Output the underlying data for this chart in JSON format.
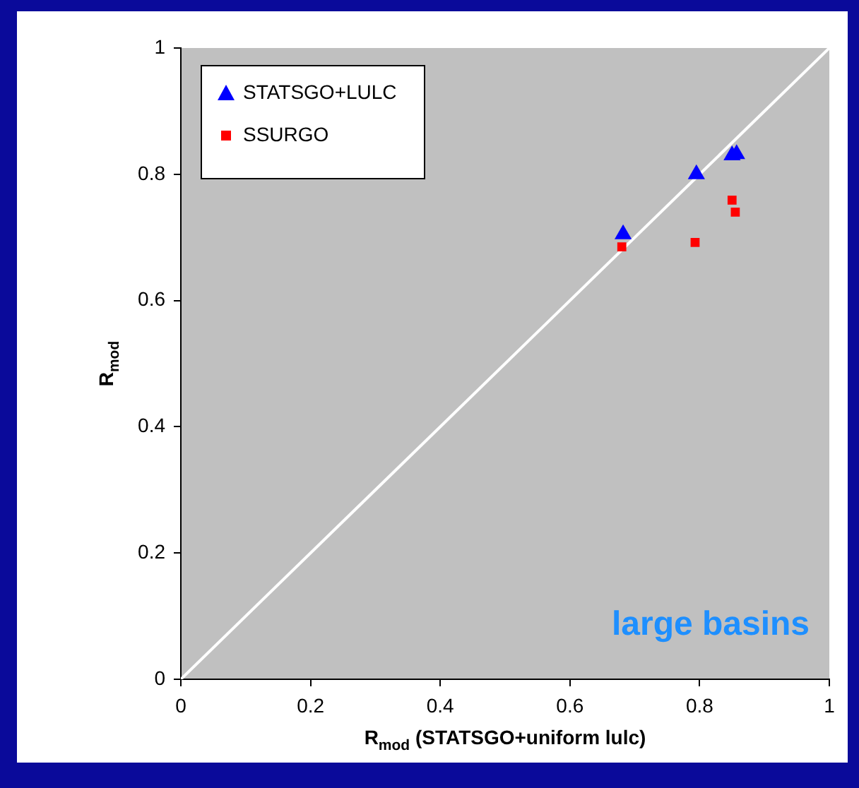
{
  "chart_data": {
    "type": "scatter",
    "xlabel": "R$_{mod}$ (STATSGO+uniform lulc)",
    "ylabel": "R$_{mod}$",
    "xlim": [
      0,
      1
    ],
    "ylim": [
      0,
      1
    ],
    "xticks": [
      0,
      0.2,
      0.4,
      0.6,
      0.8,
      1
    ],
    "yticks": [
      0,
      0.2,
      0.4,
      0.6,
      0.8,
      1
    ],
    "grid": false,
    "legend": "top left",
    "series": [
      {
        "name": "STATSGO+LULC",
        "color": "#0000ff",
        "marker": "triangle",
        "x": [
          0.682,
          0.795,
          0.85,
          0.857
        ],
        "values": [
          0.705,
          0.8,
          0.83,
          0.832
        ]
      },
      {
        "name": "SSURGO",
        "color": "#ff0000",
        "marker": "square",
        "x": [
          0.68,
          0.85,
          0.855,
          0.793
        ],
        "values": [
          0.685,
          0.759,
          0.74,
          0.692
        ]
      },
      {
        "type": "line",
        "color": "#ffffff",
        "marker": "none",
        "x": [
          0,
          1
        ],
        "values": [
          0,
          1
        ]
      }
    ],
    "annotations": [
      "large basins"
    ]
  }
}
